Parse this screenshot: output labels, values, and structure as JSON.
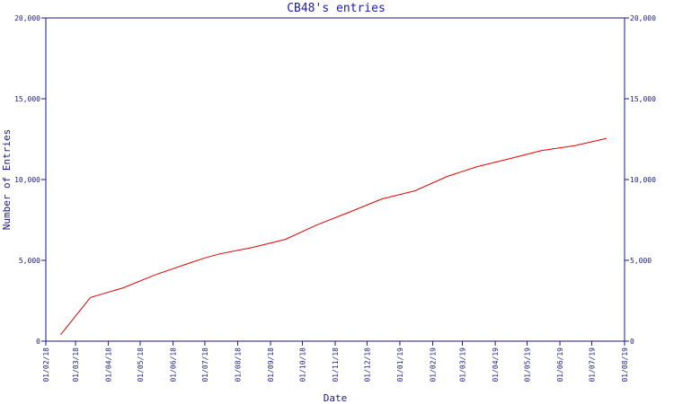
{
  "chart_data": {
    "type": "line",
    "title": "CB48's entries",
    "xlabel": "Date",
    "ylabel": "Number of Entries",
    "ylim": [
      0,
      20000
    ],
    "y_ticks": [
      0,
      5000,
      10000,
      15000,
      20000
    ],
    "y_tick_labels": [
      "0",
      "5,000",
      "10,000",
      "15,000",
      "20,000"
    ],
    "x_ticks": [
      "2018-02-01",
      "2018-03-01",
      "2018-04-01",
      "2018-05-01",
      "2018-06-01",
      "2018-07-01",
      "2018-08-01",
      "2018-09-01",
      "2018-10-01",
      "2018-11-01",
      "2018-12-01",
      "2019-01-01",
      "2019-02-01",
      "2019-03-01",
      "2019-04-01",
      "2019-05-01",
      "2019-06-01",
      "2019-07-01",
      "2019-08-01"
    ],
    "x_tick_labels": [
      "01/02/18",
      "01/03/18",
      "01/04/18",
      "01/05/18",
      "01/06/18",
      "01/07/18",
      "01/08/18",
      "01/09/18",
      "01/10/18",
      "01/11/18",
      "01/12/18",
      "01/01/19",
      "01/02/19",
      "01/03/19",
      "01/04/19",
      "01/05/19",
      "01/06/19",
      "01/07/19",
      "01/08/19"
    ],
    "y_axis_right": true,
    "grid": false,
    "series": [
      {
        "color": "#e00000",
        "points": [
          {
            "x": "2018-02-15",
            "y": 400
          },
          {
            "x": "2018-03-15",
            "y": 2700
          },
          {
            "x": "2018-04-15",
            "y": 3300
          },
          {
            "x": "2018-05-15",
            "y": 4100
          },
          {
            "x": "2018-06-15",
            "y": 4800
          },
          {
            "x": "2018-07-01",
            "y": 5150
          },
          {
            "x": "2018-07-15",
            "y": 5400
          },
          {
            "x": "2018-08-15",
            "y": 5800
          },
          {
            "x": "2018-09-15",
            "y": 6300
          },
          {
            "x": "2018-10-15",
            "y": 7200
          },
          {
            "x": "2018-11-15",
            "y": 8000
          },
          {
            "x": "2018-12-15",
            "y": 8800
          },
          {
            "x": "2019-01-15",
            "y": 9300
          },
          {
            "x": "2019-02-15",
            "y": 10200
          },
          {
            "x": "2019-03-15",
            "y": 10800
          },
          {
            "x": "2019-04-15",
            "y": 11300
          },
          {
            "x": "2019-05-15",
            "y": 11800
          },
          {
            "x": "2019-06-15",
            "y": 12100
          },
          {
            "x": "2019-07-15",
            "y": 12550
          }
        ]
      }
    ]
  }
}
